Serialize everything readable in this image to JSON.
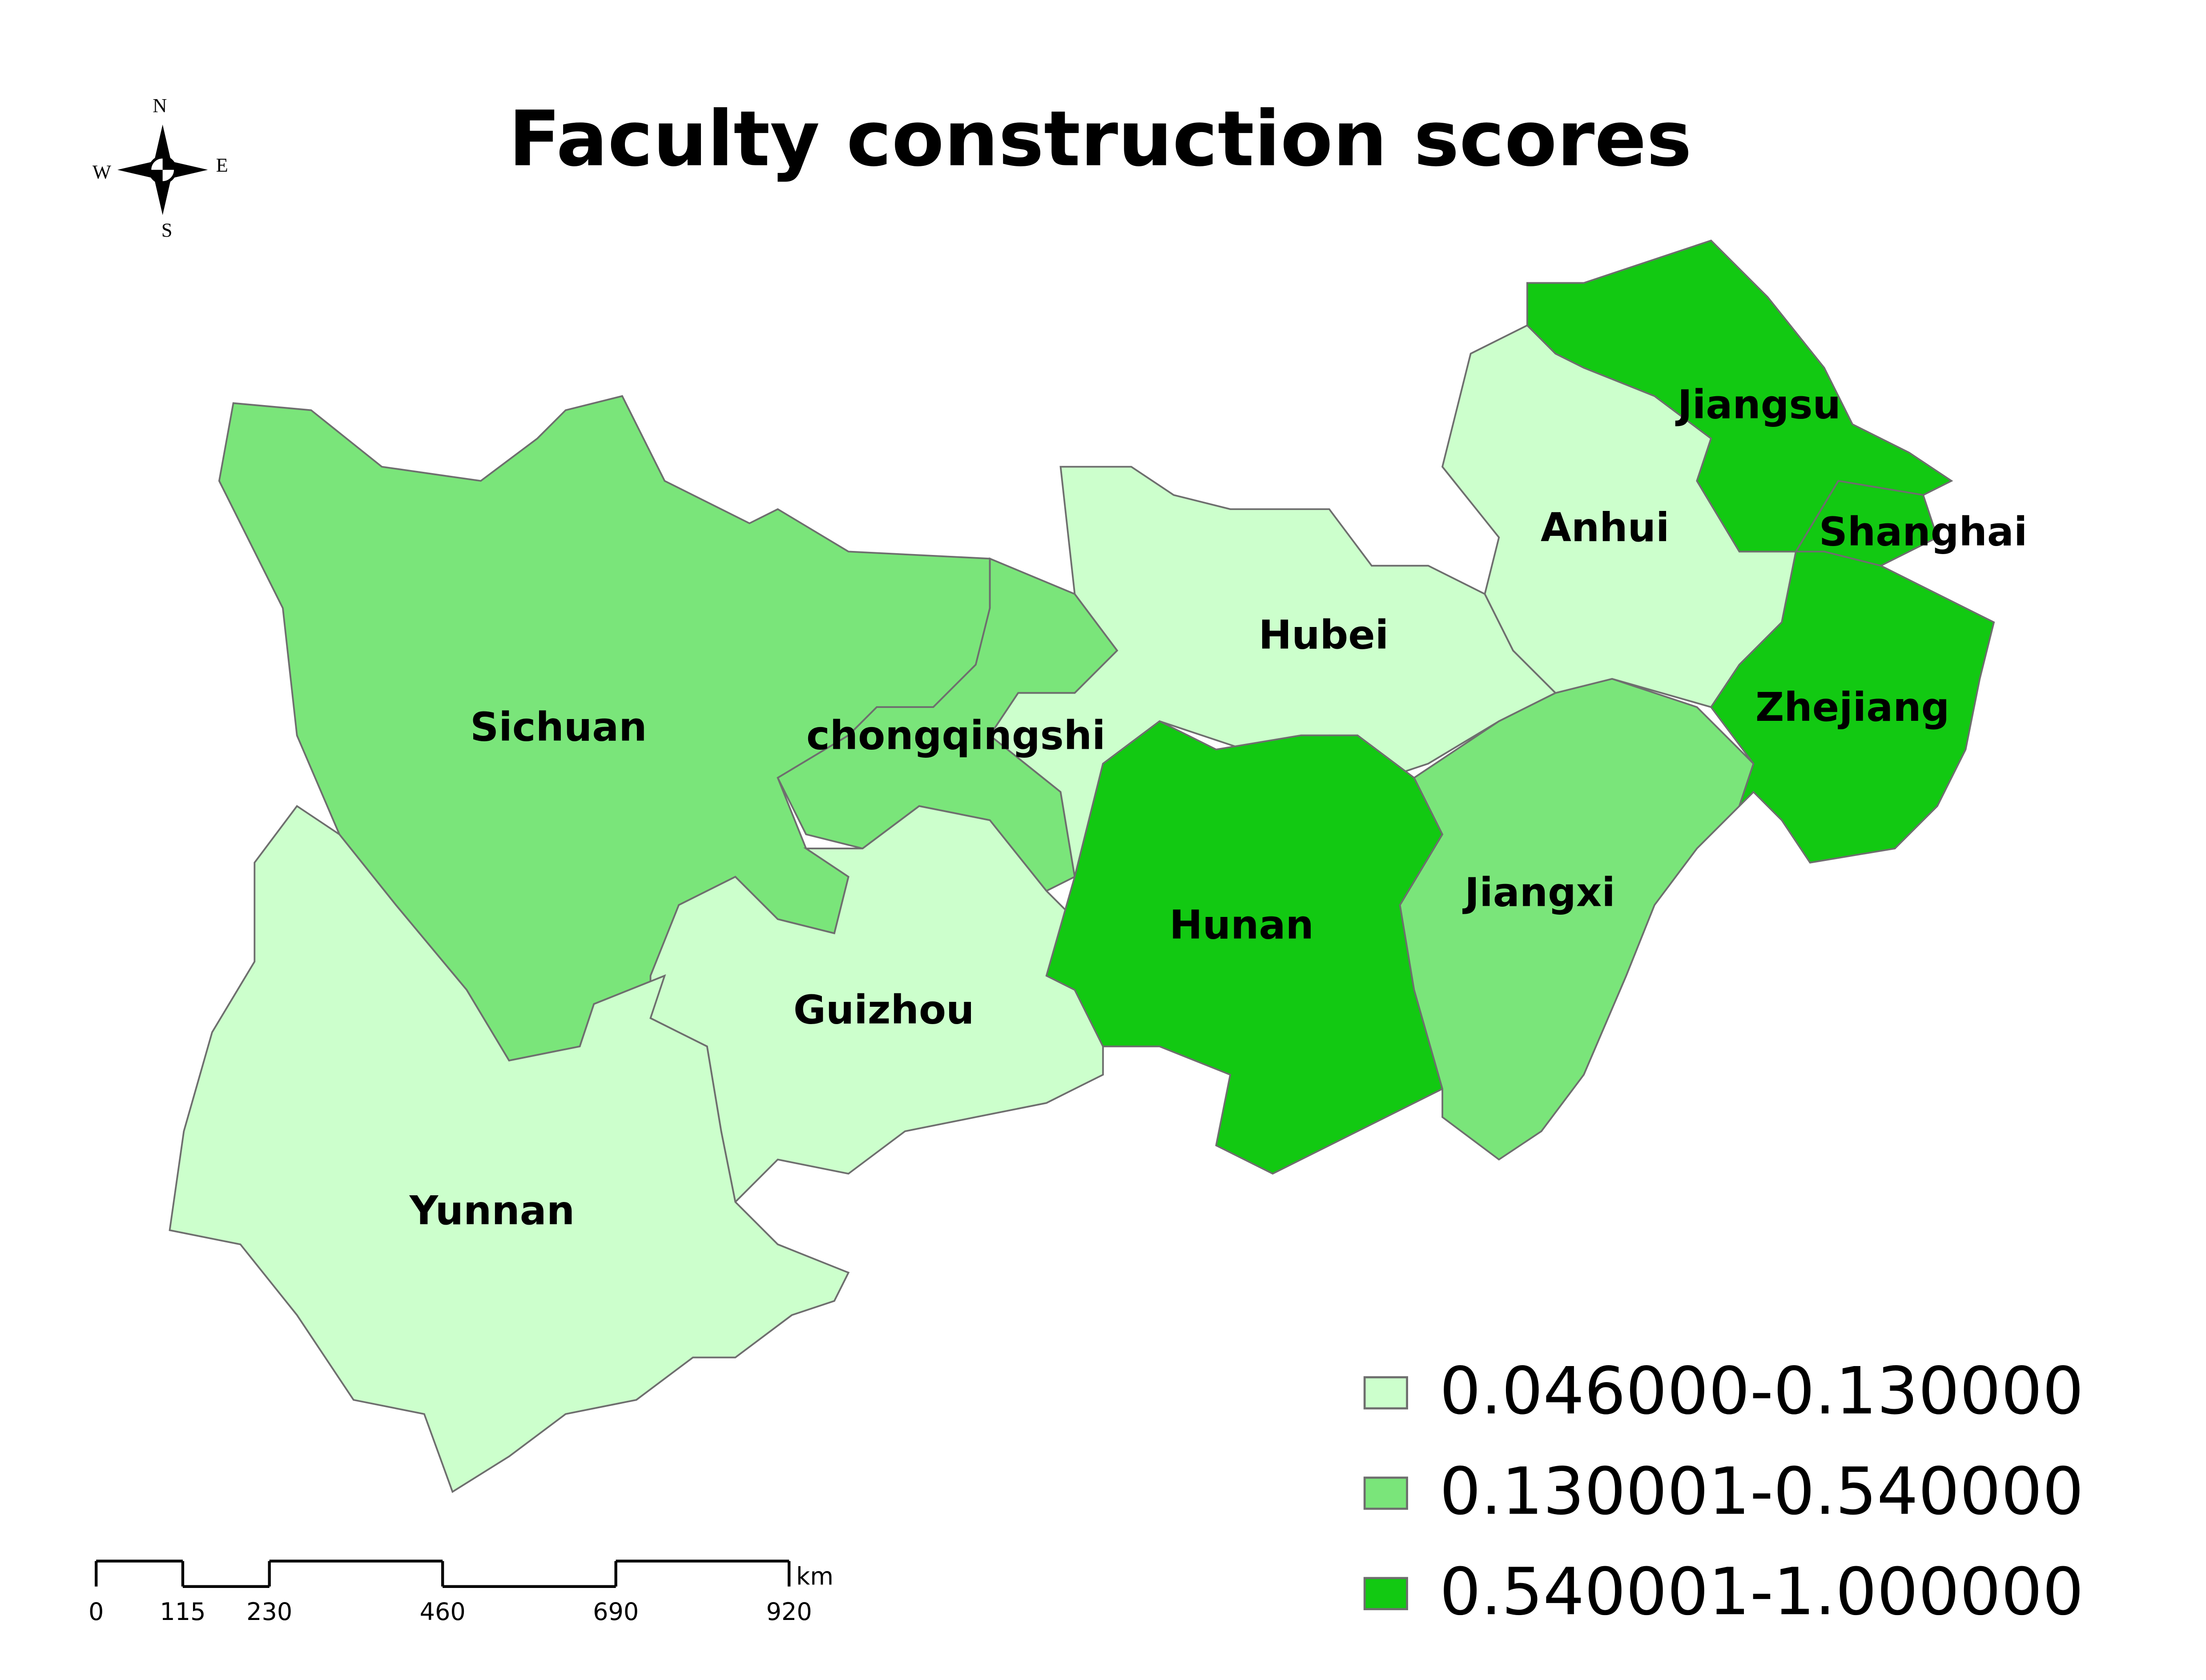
{
  "map": {
    "title": "Faculty construction scores",
    "compass": {
      "north": "N",
      "south": "S",
      "east": "E",
      "west": "W"
    },
    "legend": [
      {
        "label": "0.046000-0.130000",
        "color": "#ccffcc"
      },
      {
        "label": "0.130001-0.540000",
        "color": "#7ae57a"
      },
      {
        "label": "0.540001-1.000000",
        "color": "#12c912"
      }
    ],
    "regions": [
      {
        "name": "Sichuan",
        "class": 1
      },
      {
        "name": "chongqingshi",
        "class": 1
      },
      {
        "name": "Guizhou",
        "class": 0
      },
      {
        "name": "Yunnan",
        "class": 0
      },
      {
        "name": "Hubei",
        "class": 0
      },
      {
        "name": "Hunan",
        "class": 2
      },
      {
        "name": "Jiangxi",
        "class": 1
      },
      {
        "name": "Anhui",
        "class": 0
      },
      {
        "name": "Jiangsu",
        "class": 2
      },
      {
        "name": "Shanghai",
        "class": 2
      },
      {
        "name": "Zhejiang",
        "class": 2
      }
    ],
    "scale_bar": {
      "ticks": [
        0,
        115,
        230,
        460,
        690,
        920
      ],
      "unit": "km"
    }
  }
}
